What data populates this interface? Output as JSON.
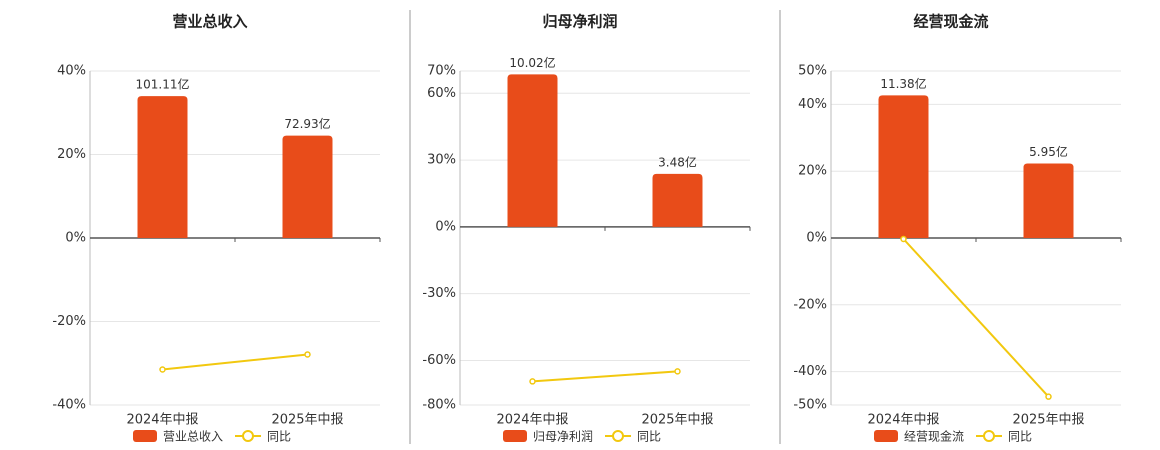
{
  "chart_data": [
    {
      "type": "bar-line",
      "title": "营业总收入",
      "categories": [
        "2024年中报",
        "2025年中报"
      ],
      "series": [
        {
          "name": "营业总收入",
          "color": "#e84c1a",
          "type": "bar",
          "axis": "y2",
          "values": [
            101.11,
            72.93
          ],
          "value_labels": [
            "101.11亿",
            "72.93亿"
          ]
        },
        {
          "name": "同比",
          "color": "#f2c80f",
          "type": "line",
          "values": [
            -31.5,
            -27.9
          ]
        }
      ],
      "ylim": [
        -40,
        40
      ],
      "yticks": [
        {
          "value": 40,
          "label": "40%"
        },
        {
          "value": 20,
          "label": "20%"
        },
        {
          "value": 0,
          "label": "0%"
        },
        {
          "value": -20,
          "label": "-20%"
        },
        {
          "value": -40,
          "label": "-40%"
        }
      ],
      "y2lim": [
        -119,
        119
      ],
      "grid": true
    },
    {
      "type": "bar-line",
      "title": "归母净利润",
      "categories": [
        "2024年中报",
        "2025年中报"
      ],
      "series": [
        {
          "name": "归母净利润",
          "color": "#e84c1a",
          "type": "bar",
          "axis": "y2",
          "values": [
            10.02,
            3.48
          ],
          "value_labels": [
            "10.02亿",
            "3.48亿"
          ]
        },
        {
          "name": "同比",
          "color": "#f2c80f",
          "type": "line",
          "values": [
            -69.4,
            -64.9
          ]
        }
      ],
      "ylim": [
        -80,
        70
      ],
      "yticks": [
        {
          "value": 70,
          "label": "70%"
        },
        {
          "value": 60,
          "label": "60%"
        },
        {
          "value": 30,
          "label": "30%"
        },
        {
          "value": 0,
          "label": "0%"
        },
        {
          "value": -30,
          "label": "-30%"
        },
        {
          "value": -60,
          "label": "-60%"
        },
        {
          "value": -80,
          "label": "-80%"
        }
      ],
      "y2lim": [
        -11.7,
        10.24
      ],
      "grid": true
    },
    {
      "type": "bar-line",
      "title": "经营现金流",
      "categories": [
        "2024年中报",
        "2025年中报"
      ],
      "series": [
        {
          "name": "经营现金流",
          "color": "#e84c1a",
          "type": "bar",
          "axis": "y2",
          "values": [
            11.38,
            5.95
          ],
          "value_labels": [
            "11.38亿",
            "5.95亿"
          ]
        },
        {
          "name": "同比",
          "color": "#f2c80f",
          "type": "line",
          "values": [
            -0.3,
            -47.5
          ]
        }
      ],
      "ylim": [
        -50,
        50
      ],
      "yticks": [
        {
          "value": 50,
          "label": "50%"
        },
        {
          "value": 40,
          "label": "40%"
        },
        {
          "value": 20,
          "label": "20%"
        },
        {
          "value": 0,
          "label": "0%"
        },
        {
          "value": -20,
          "label": "-20%"
        },
        {
          "value": -40,
          "label": "-40%"
        },
        {
          "value": -50,
          "label": "-50%"
        }
      ],
      "y2lim": [
        -13.33,
        13.33
      ],
      "grid": true
    }
  ]
}
